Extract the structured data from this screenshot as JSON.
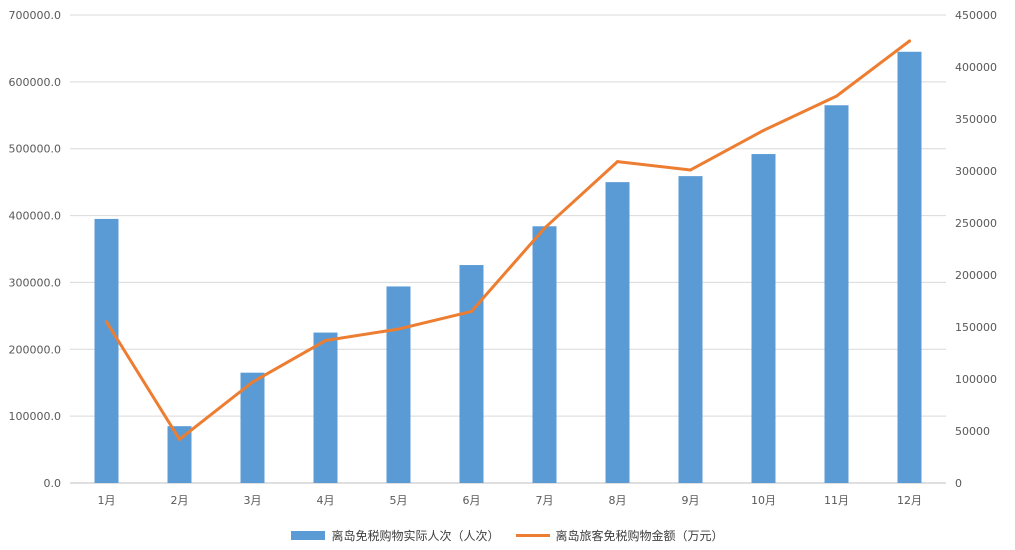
{
  "chart_data": {
    "type": "bar",
    "categories": [
      "1月",
      "2月",
      "3月",
      "4月",
      "5月",
      "6月",
      "7月",
      "8月",
      "9月",
      "10月",
      "11月",
      "12月"
    ],
    "series": [
      {
        "name": "离岛免税购物实际人次（人次）",
        "type": "bar",
        "axis": "left",
        "color": "#5b9bd5",
        "values": [
          395000,
          85000,
          165000,
          225000,
          294000,
          326000,
          384000,
          450000,
          459000,
          492000,
          565000,
          645000
        ]
      },
      {
        "name": "离岛旅客免税购物金额（万元）",
        "type": "line",
        "axis": "right",
        "color": "#ed7d31",
        "values": [
          155000,
          42000,
          97000,
          137000,
          148000,
          165000,
          245000,
          309000,
          301000,
          339000,
          372000,
          425000
        ]
      }
    ],
    "y_left": {
      "ylim": [
        0,
        700000
      ],
      "ticks": [
        "0.0",
        "100000.0",
        "200000.0",
        "300000.0",
        "400000.0",
        "500000.0",
        "600000.0",
        "700000.0"
      ]
    },
    "y_right": {
      "ylim": [
        0,
        450000
      ],
      "ticks": [
        "0",
        "50000",
        "100000",
        "150000",
        "200000",
        "250000",
        "300000",
        "350000",
        "400000",
        "450000"
      ]
    },
    "grid": true,
    "legend_position": "bottom"
  }
}
